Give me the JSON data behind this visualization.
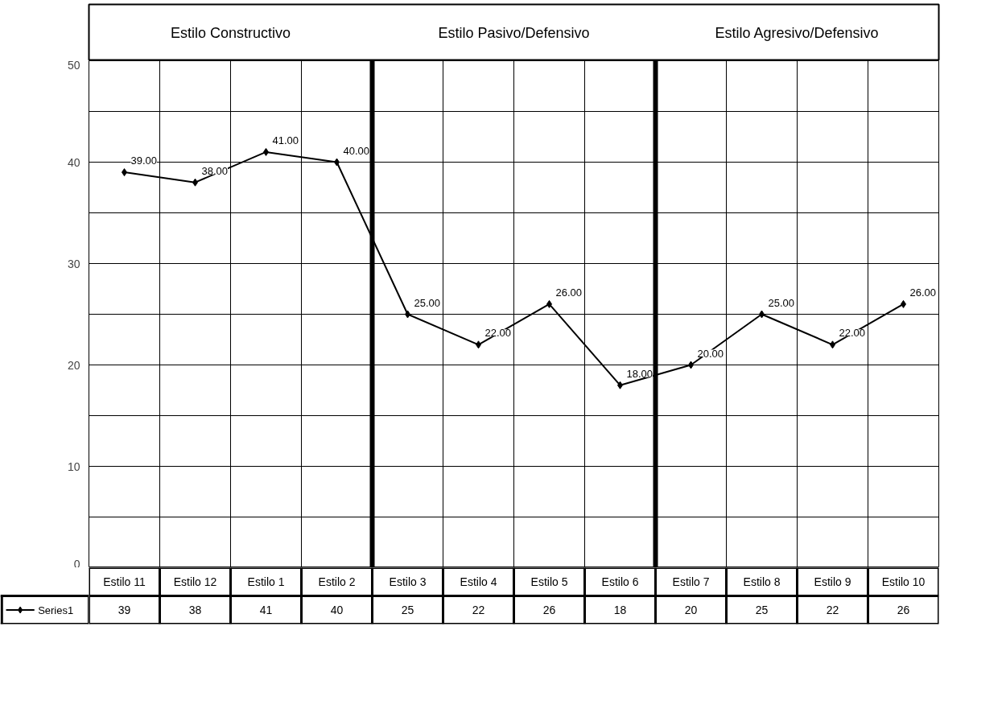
{
  "chart_data": {
    "type": "line",
    "categories": [
      "Estilo 11",
      "Estilo 12",
      "Estilo 1",
      "Estilo 2",
      "Estilo 3",
      "Estilo 4",
      "Estilo 5",
      "Estilo 6",
      "Estilo 7",
      "Estilo 8",
      "Estilo 9",
      "Estilo 10"
    ],
    "series": [
      {
        "name": "Series1",
        "color": "#000000",
        "values": [
          39,
          38,
          41,
          40,
          25,
          22,
          26,
          18,
          20,
          25,
          22,
          26
        ]
      }
    ],
    "annotations": [
      "Estilo Constructivo",
      "Estilo Pasivo/Defensivo",
      "Estilo Agresivo/Defensivo",
      {
        "text": "39.00",
        "x": "Estilo 11",
        "y": 39
      },
      {
        "text": "38.00",
        "x": "Estilo 12",
        "y": 38
      },
      {
        "text": "41.00",
        "x": "Estilo 1",
        "y": 41
      },
      {
        "text": "40.00",
        "x": "Estilo 2",
        "y": 40
      },
      {
        "text": "25.00",
        "x": "Estilo 3",
        "y": 25
      },
      {
        "text": "22.00",
        "x": "Estilo 4",
        "y": 22
      },
      {
        "text": "26.00",
        "x": "Estilo 5",
        "y": 26
      },
      {
        "text": "18.00",
        "x": "Estilo 6",
        "y": 18
      },
      {
        "text": "20.00",
        "x": "Estilo 7",
        "y": 20
      },
      {
        "text": "25.00",
        "x": "Estilo 8",
        "y": 25
      },
      {
        "text": "22.00",
        "x": "Estilo 9",
        "y": 22
      },
      {
        "text": "26.00",
        "x": "Estilo 10",
        "y": 26
      }
    ],
    "ylim": [
      0,
      50
    ],
    "yticks": [
      0,
      10,
      20,
      30,
      40,
      50
    ],
    "grid": true,
    "marker": "diamond",
    "line_style": "solid",
    "legend": "bottom left",
    "data_labels": true
  }
}
